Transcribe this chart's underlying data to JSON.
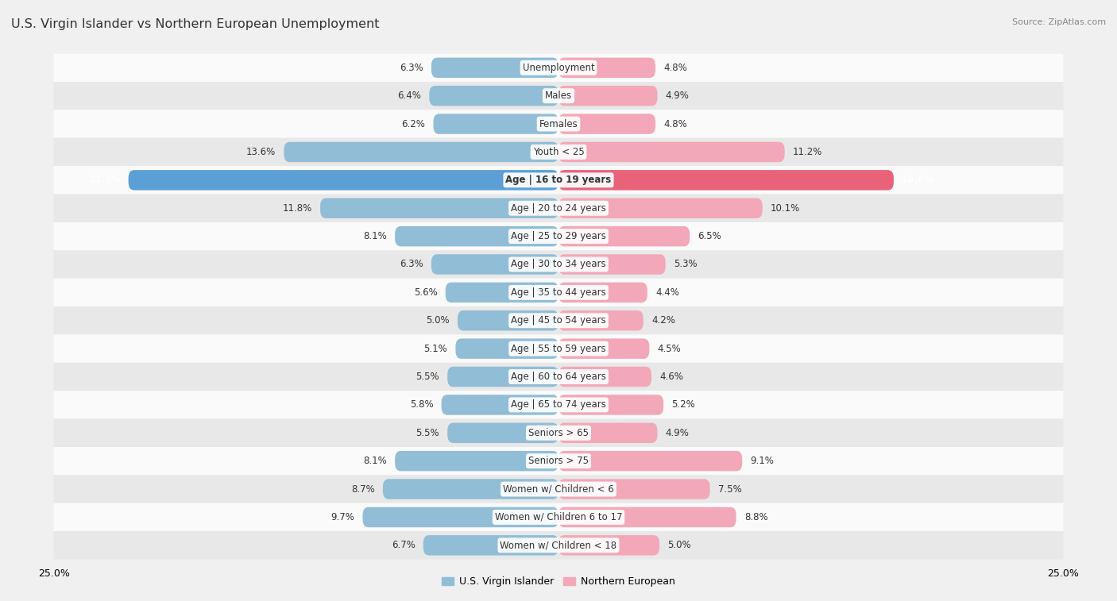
{
  "title": "U.S. Virgin Islander vs Northern European Unemployment",
  "source": "Source: ZipAtlas.com",
  "categories": [
    "Unemployment",
    "Males",
    "Females",
    "Youth < 25",
    "Age | 16 to 19 years",
    "Age | 20 to 24 years",
    "Age | 25 to 29 years",
    "Age | 30 to 34 years",
    "Age | 35 to 44 years",
    "Age | 45 to 54 years",
    "Age | 55 to 59 years",
    "Age | 60 to 64 years",
    "Age | 65 to 74 years",
    "Seniors > 65",
    "Seniors > 75",
    "Women w/ Children < 6",
    "Women w/ Children 6 to 17",
    "Women w/ Children < 18"
  ],
  "left_values": [
    6.3,
    6.4,
    6.2,
    13.6,
    21.3,
    11.8,
    8.1,
    6.3,
    5.6,
    5.0,
    5.1,
    5.5,
    5.8,
    5.5,
    8.1,
    8.7,
    9.7,
    6.7
  ],
  "right_values": [
    4.8,
    4.9,
    4.8,
    11.2,
    16.6,
    10.1,
    6.5,
    5.3,
    4.4,
    4.2,
    4.5,
    4.6,
    5.2,
    4.9,
    9.1,
    7.5,
    8.8,
    5.0
  ],
  "left_color": "#92BDD6",
  "right_color": "#F2A8B8",
  "left_highlight_color": "#5B9FD4",
  "right_highlight_color": "#E8637A",
  "highlight_index": 4,
  "left_label": "U.S. Virgin Islander",
  "right_label": "Northern European",
  "axis_max": 25.0,
  "background_color": "#f0f0f0",
  "row_even_color": "#fafafa",
  "row_odd_color": "#e8e8e8",
  "title_fontsize": 11.5,
  "label_fontsize": 8.5,
  "value_fontsize": 8.5
}
